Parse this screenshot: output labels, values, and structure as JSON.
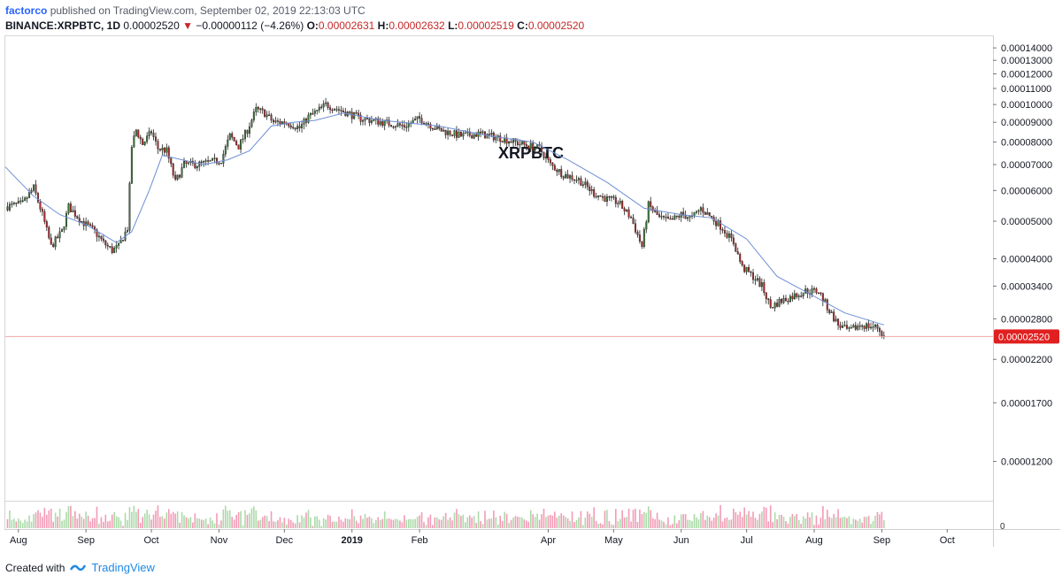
{
  "header": {
    "author": "factorco",
    "published": "published on TradingView.com, September 02, 2019 22:13:03 UTC"
  },
  "symbol_line": {
    "symbol": "BINANCE:XRPBTC, 1D",
    "last": "0.00002520",
    "arrow": "▼",
    "change": "−0.00000112 (−4.26%)",
    "o_label": "O:",
    "o_value": "0.00002631",
    "h_label": "H:",
    "h_value": "0.00002632",
    "l_label": "L:",
    "l_value": "0.00002519",
    "c_label": "C:",
    "c_value": "0.00002520"
  },
  "footer": {
    "created_with": "Created with",
    "brand": "TradingView"
  },
  "colors": {
    "up": "#3a7d35",
    "down": "#b02a2a",
    "ma": "#6d8ed6",
    "price_line": "#f3a6a6",
    "price_tag": "#e02020"
  },
  "chart_data": {
    "type": "candlestick",
    "title": "XRPBTC",
    "symbol": "BINANCE:XRPBTC",
    "interval": "1D",
    "y_scale": "log",
    "ylim": [
      9.5e-06,
      0.00015
    ],
    "y_ticks": [
      "0.00014000",
      "0.00013000",
      "0.00012000",
      "0.00011000",
      "0.00010000",
      "0.00009000",
      "0.00008000",
      "0.00007000",
      "0.00006000",
      "0.00005000",
      "0.00004000",
      "0.00003400",
      "0.00002800",
      "0.00002200",
      "0.00001700",
      "0.00001200"
    ],
    "last_price_label": "0.00002520",
    "last_price": 2.52e-05,
    "x_ticks": [
      "Aug",
      "Sep",
      "Oct",
      "Nov",
      "Dec",
      "2019",
      "Feb",
      "Apr",
      "May",
      "Jun",
      "Jul",
      "Aug",
      "Sep",
      "Oct"
    ],
    "x_tick_dates": [
      "2018-08-01",
      "2018-09-01",
      "2018-10-01",
      "2018-11-01",
      "2018-12-01",
      "2019-01-01",
      "2019-02-01",
      "2019-04-01",
      "2019-05-01",
      "2019-06-01",
      "2019-07-01",
      "2019-08-01",
      "2019-09-01",
      "2019-10-01"
    ],
    "x_range": [
      "2018-07-26",
      "2019-10-22"
    ],
    "close_points": [
      [
        "2018-07-26",
        5.45e-05
      ],
      [
        "2018-08-03",
        5.55e-05
      ],
      [
        "2018-08-08",
        6.1e-05
      ],
      [
        "2018-08-12",
        5.2e-05
      ],
      [
        "2018-08-16",
        4.3e-05
      ],
      [
        "2018-08-21",
        4.7e-05
      ],
      [
        "2018-08-24",
        5.45e-05
      ],
      [
        "2018-08-30",
        5e-05
      ],
      [
        "2018-09-05",
        4.7e-05
      ],
      [
        "2018-09-09",
        4.4e-05
      ],
      [
        "2018-09-13",
        4.2e-05
      ],
      [
        "2018-09-16",
        4.3e-05
      ],
      [
        "2018-09-20",
        4.8e-05
      ],
      [
        "2018-09-22",
        7.8e-05
      ],
      [
        "2018-09-24",
        8.6e-05
      ],
      [
        "2018-09-27",
        7.9e-05
      ],
      [
        "2018-10-01",
        8.5e-05
      ],
      [
        "2018-10-04",
        7.7e-05
      ],
      [
        "2018-10-08",
        7.6e-05
      ],
      [
        "2018-10-12",
        6.3e-05
      ],
      [
        "2018-10-16",
        7e-05
      ],
      [
        "2018-10-22",
        7e-05
      ],
      [
        "2018-10-28",
        7.1e-05
      ],
      [
        "2018-11-02",
        7.2e-05
      ],
      [
        "2018-11-06",
        8.3e-05
      ],
      [
        "2018-11-10",
        7.8e-05
      ],
      [
        "2018-11-14",
        8.6e-05
      ],
      [
        "2018-11-18",
        9.7e-05
      ],
      [
        "2018-11-22",
        9.5e-05
      ],
      [
        "2018-11-26",
        9e-05
      ],
      [
        "2018-12-02",
        9e-05
      ],
      [
        "2018-12-08",
        8.7e-05
      ],
      [
        "2018-12-12",
        9.3e-05
      ],
      [
        "2018-12-16",
        9.6e-05
      ],
      [
        "2018-12-20",
        0.0001
      ],
      [
        "2018-12-24",
        9.8e-05
      ],
      [
        "2018-12-28",
        9.6e-05
      ],
      [
        "2019-01-05",
        9.2e-05
      ],
      [
        "2019-01-15",
        9e-05
      ],
      [
        "2019-01-25",
        8.8e-05
      ],
      [
        "2019-02-01",
        9.2e-05
      ],
      [
        "2019-02-10",
        8.6e-05
      ],
      [
        "2019-02-20",
        8.3e-05
      ],
      [
        "2019-02-28",
        8.4e-05
      ],
      [
        "2019-03-10",
        8.2e-05
      ],
      [
        "2019-03-20",
        7.9e-05
      ],
      [
        "2019-03-28",
        7.7e-05
      ],
      [
        "2019-04-02",
        7e-05
      ],
      [
        "2019-04-08",
        6.6e-05
      ],
      [
        "2019-04-15",
        6.4e-05
      ],
      [
        "2019-04-22",
        5.9e-05
      ],
      [
        "2019-04-28",
        5.7e-05
      ],
      [
        "2019-05-03",
        5.6e-05
      ],
      [
        "2019-05-09",
        5.1e-05
      ],
      [
        "2019-05-14",
        4.3e-05
      ],
      [
        "2019-05-17",
        5.5e-05
      ],
      [
        "2019-05-22",
        5.1e-05
      ],
      [
        "2019-05-27",
        5e-05
      ],
      [
        "2019-06-01",
        5.2e-05
      ],
      [
        "2019-06-06",
        5.1e-05
      ],
      [
        "2019-06-10",
        5.4e-05
      ],
      [
        "2019-06-15",
        5.1e-05
      ],
      [
        "2019-06-20",
        4.8e-05
      ],
      [
        "2019-06-25",
        4.4e-05
      ],
      [
        "2019-06-29",
        3.8e-05
      ],
      [
        "2019-07-04",
        3.6e-05
      ],
      [
        "2019-07-08",
        3.4e-05
      ],
      [
        "2019-07-12",
        3e-05
      ],
      [
        "2019-07-16",
        3.1e-05
      ],
      [
        "2019-07-22",
        3.2e-05
      ],
      [
        "2019-07-28",
        3.3e-05
      ],
      [
        "2019-08-03",
        3.3e-05
      ],
      [
        "2019-08-07",
        3e-05
      ],
      [
        "2019-08-12",
        2.7e-05
      ],
      [
        "2019-08-17",
        2.6e-05
      ],
      [
        "2019-08-22",
        2.7e-05
      ],
      [
        "2019-08-26",
        2.68e-05
      ],
      [
        "2019-08-30",
        2.66e-05
      ],
      [
        "2019-09-02",
        2.52e-05
      ]
    ],
    "moving_average_points": [
      [
        "2018-07-26",
        6.9e-05
      ],
      [
        "2018-08-08",
        5.8e-05
      ],
      [
        "2018-08-20",
        5.2e-05
      ],
      [
        "2018-09-01",
        4.9e-05
      ],
      [
        "2018-09-15",
        4.4e-05
      ],
      [
        "2018-09-22",
        4.7e-05
      ],
      [
        "2018-09-30",
        6e-05
      ],
      [
        "2018-10-06",
        7.4e-05
      ],
      [
        "2018-10-15",
        7.2e-05
      ],
      [
        "2018-10-25",
        7e-05
      ],
      [
        "2018-11-05",
        7.2e-05
      ],
      [
        "2018-11-15",
        7.6e-05
      ],
      [
        "2018-11-25",
        8.8e-05
      ],
      [
        "2018-12-05",
        9e-05
      ],
      [
        "2018-12-15",
        9.1e-05
      ],
      [
        "2018-12-28",
        9.5e-05
      ],
      [
        "2019-01-15",
        9.1e-05
      ],
      [
        "2019-02-10",
        8.8e-05
      ],
      [
        "2019-03-05",
        8.3e-05
      ],
      [
        "2019-03-25",
        8e-05
      ],
      [
        "2019-04-10",
        7.2e-05
      ],
      [
        "2019-04-28",
        6.3e-05
      ],
      [
        "2019-05-15",
        5.4e-05
      ],
      [
        "2019-06-01",
        5.2e-05
      ],
      [
        "2019-06-15",
        5.1e-05
      ],
      [
        "2019-07-01",
        4.5e-05
      ],
      [
        "2019-07-15",
        3.6e-05
      ],
      [
        "2019-08-01",
        3.2e-05
      ],
      [
        "2019-08-15",
        2.9e-05
      ],
      [
        "2019-09-02",
        2.7e-05
      ]
    ],
    "grid": false,
    "volume_pane": true,
    "volume_axis_label": "0"
  }
}
